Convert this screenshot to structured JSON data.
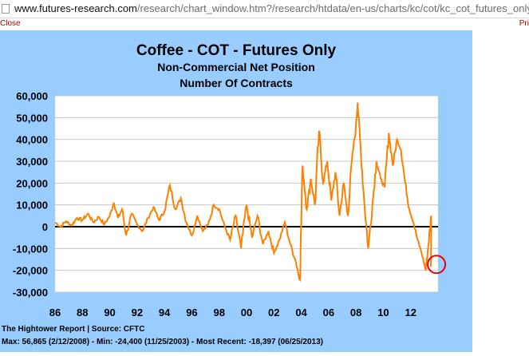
{
  "browser": {
    "url_host": "www.futures-research.com",
    "url_path": "/research/chart_window.htm?/research/htdata/en-us/charts/kc/cot/kc_cot_futures_only_nonco"
  },
  "actions": {
    "close_label": "Close",
    "print_label": "Pri"
  },
  "colors": {
    "panel_bg": "#99ccff",
    "plot_bg": "#ffffff",
    "series": "#ff7f00",
    "highlight": "#e8000b"
  },
  "chart_data": {
    "type": "line",
    "title": "Coffee - COT - Futures Only",
    "subtitle1": "Non-Commercial Net Position",
    "subtitle2": "Number Of Contracts",
    "ylim": [
      -30000,
      60000
    ],
    "yticks": [
      60000,
      50000,
      40000,
      30000,
      20000,
      10000,
      0,
      -10000,
      -20000,
      -30000
    ],
    "ytick_labels": [
      "60,000",
      "50,000",
      "40,000",
      "30,000",
      "20,000",
      "10,000",
      "0",
      "-10,000",
      "-20,000",
      "-30,000"
    ],
    "xlim": [
      1986.0,
      2014.0
    ],
    "xticks": [
      1986,
      1988,
      1990,
      1992,
      1994,
      1996,
      1998,
      2000,
      2002,
      2004,
      2006,
      2008,
      2010,
      2012
    ],
    "xtick_labels": [
      "86",
      "88",
      "90",
      "92",
      "94",
      "96",
      "98",
      "00",
      "02",
      "04",
      "06",
      "08",
      "10",
      "12"
    ],
    "grid": true,
    "series": [
      {
        "values": [
          [
            1986.0,
            2000
          ],
          [
            1986.4,
            0
          ],
          [
            1986.8,
            2500
          ],
          [
            1987.2,
            500
          ],
          [
            1987.6,
            4000
          ],
          [
            1988.0,
            3000
          ],
          [
            1988.4,
            6000
          ],
          [
            1988.8,
            2000
          ],
          [
            1989.2,
            4500
          ],
          [
            1989.6,
            1000
          ],
          [
            1990.0,
            5000
          ],
          [
            1990.3,
            11000
          ],
          [
            1990.6,
            4000
          ],
          [
            1990.9,
            8000
          ],
          [
            1991.2,
            -4000
          ],
          [
            1991.6,
            6000
          ],
          [
            1992.0,
            1000
          ],
          [
            1992.4,
            -2000
          ],
          [
            1992.8,
            4000
          ],
          [
            1993.2,
            9000
          ],
          [
            1993.6,
            3000
          ],
          [
            1994.0,
            7000
          ],
          [
            1994.4,
            19000
          ],
          [
            1994.8,
            8000
          ],
          [
            1995.2,
            13000
          ],
          [
            1995.6,
            2000
          ],
          [
            1996.0,
            -4000
          ],
          [
            1996.4,
            5000
          ],
          [
            1996.8,
            -2000
          ],
          [
            1997.2,
            1000
          ],
          [
            1997.6,
            10000
          ],
          [
            1998.0,
            8000
          ],
          [
            1998.4,
            0
          ],
          [
            1998.8,
            -6000
          ],
          [
            1999.2,
            5000
          ],
          [
            1999.6,
            -10000
          ],
          [
            2000.0,
            10000
          ],
          [
            2000.4,
            -5000
          ],
          [
            2000.8,
            5000
          ],
          [
            2001.2,
            -8000
          ],
          [
            2001.6,
            -2000
          ],
          [
            2002.0,
            -12000
          ],
          [
            2002.4,
            -6000
          ],
          [
            2002.8,
            2000
          ],
          [
            2003.2,
            -8000
          ],
          [
            2003.6,
            -16000
          ],
          [
            2003.9,
            -24400
          ],
          [
            2004.1,
            28000
          ],
          [
            2004.4,
            8000
          ],
          [
            2004.7,
            22000
          ],
          [
            2005.0,
            10000
          ],
          [
            2005.3,
            44000
          ],
          [
            2005.6,
            20000
          ],
          [
            2005.9,
            30000
          ],
          [
            2006.2,
            12000
          ],
          [
            2006.5,
            25000
          ],
          [
            2006.8,
            5000
          ],
          [
            2007.1,
            20000
          ],
          [
            2007.4,
            5000
          ],
          [
            2007.7,
            30000
          ],
          [
            2008.0,
            46000
          ],
          [
            2008.12,
            56865
          ],
          [
            2008.3,
            40000
          ],
          [
            2008.6,
            12000
          ],
          [
            2008.9,
            -10000
          ],
          [
            2009.2,
            10000
          ],
          [
            2009.5,
            30000
          ],
          [
            2009.8,
            22000
          ],
          [
            2010.1,
            18000
          ],
          [
            2010.4,
            43000
          ],
          [
            2010.7,
            28000
          ],
          [
            2011.0,
            40000
          ],
          [
            2011.3,
            35000
          ],
          [
            2011.6,
            20000
          ],
          [
            2011.9,
            8000
          ],
          [
            2012.2,
            2000
          ],
          [
            2012.5,
            -6000
          ],
          [
            2012.8,
            -12000
          ],
          [
            2013.1,
            -20000
          ],
          [
            2013.3,
            -8000
          ],
          [
            2013.5,
            5000
          ],
          [
            2013.48,
            -18397
          ]
        ]
      }
    ],
    "footer_source": "The Hightower Report | Source: CFTC",
    "footer_stats": "Max: 56,865 (2/12/2008)  -  Min: -24,400 (11/25/2003) - Most Recent: -18,397 (06/25/2013)"
  }
}
